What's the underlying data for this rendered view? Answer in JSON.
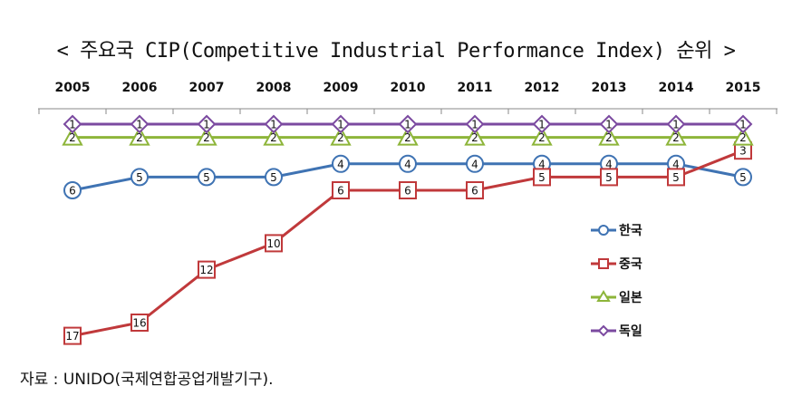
{
  "title": "< 주요국 CIP(Competitive Industrial Performance Index) 순위 >",
  "source": "자료 : UNIDO(국제연합공업개발기구).",
  "chart_data": {
    "type": "line",
    "title": "< 주요국 CIP(Competitive Industrial Performance Index) 순위 >",
    "x": [
      "2005",
      "2006",
      "2007",
      "2008",
      "2009",
      "2010",
      "2011",
      "2012",
      "2013",
      "2014",
      "2015"
    ],
    "y_axis": "rank (1 at top, inverted)",
    "ylim": [
      1,
      17
    ],
    "grid": false,
    "legend_position": "right",
    "series": [
      {
        "name": "한국",
        "marker": "circle",
        "color": "#3f73b3",
        "values": [
          6,
          5,
          5,
          5,
          4,
          4,
          4,
          4,
          4,
          4,
          5
        ]
      },
      {
        "name": "중국",
        "marker": "square",
        "color": "#c0393b",
        "values": [
          17,
          16,
          12,
          10,
          6,
          6,
          6,
          5,
          5,
          5,
          3
        ]
      },
      {
        "name": "일본",
        "marker": "triangle",
        "color": "#8db53a",
        "values": [
          2,
          2,
          2,
          2,
          2,
          2,
          2,
          2,
          2,
          2,
          2
        ]
      },
      {
        "name": "독일",
        "marker": "diamond",
        "color": "#7b4aa0",
        "values": [
          1,
          1,
          1,
          1,
          1,
          1,
          1,
          1,
          1,
          1,
          1
        ]
      }
    ]
  }
}
